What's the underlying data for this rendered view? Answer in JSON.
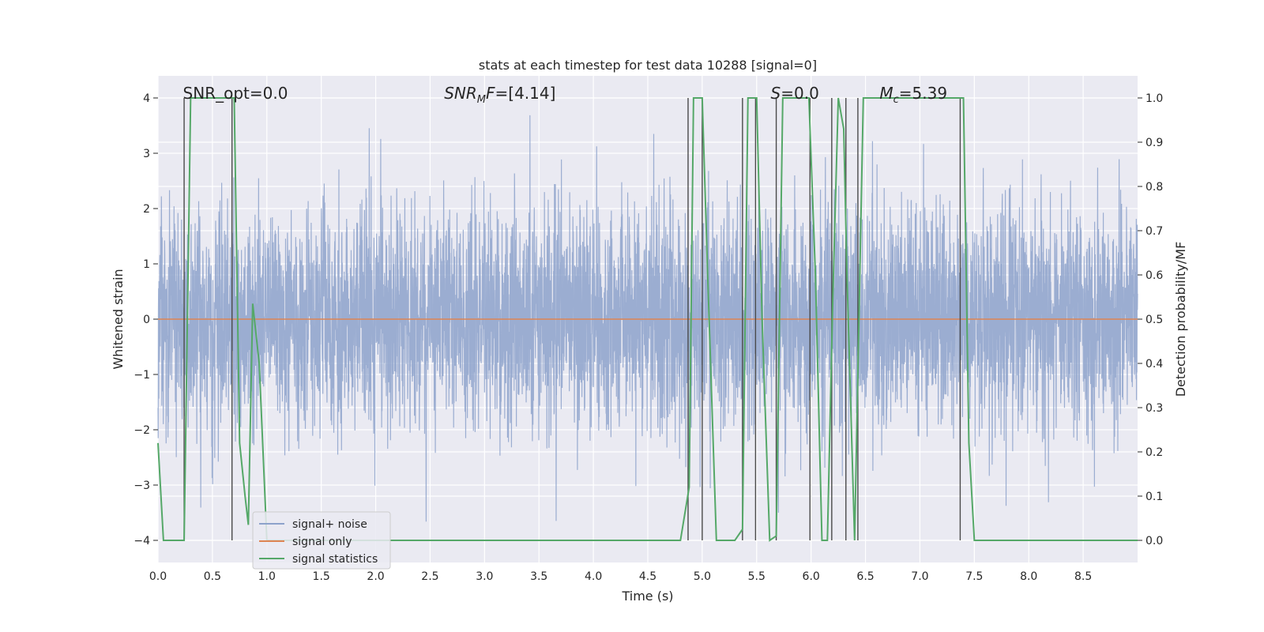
{
  "chart_data": {
    "type": "line",
    "title": "stats at each timestep for test data 10288 [signal=0]",
    "xlabel": "Time (s)",
    "ylabel": "Whitened strain",
    "y2label": "Detection probability/MF",
    "xlim": [
      0.0,
      9.0
    ],
    "ylim": [
      -4.4,
      4.4
    ],
    "y2lim": [
      -0.05,
      1.05
    ],
    "xticks": [
      0.0,
      0.5,
      1.0,
      1.5,
      2.0,
      2.5,
      3.0,
      3.5,
      4.0,
      4.5,
      5.0,
      5.5,
      6.0,
      6.5,
      7.0,
      7.5,
      8.0,
      8.5
    ],
    "xtick_labels": [
      "0.0",
      "0.5",
      "1.0",
      "1.5",
      "2.0",
      "2.5",
      "3.0",
      "3.5",
      "4.0",
      "4.5",
      "5.0",
      "5.5",
      "6.0",
      "6.5",
      "7.0",
      "7.5",
      "8.0",
      "8.5"
    ],
    "yticks": [
      -4,
      -3,
      -2,
      -1,
      0,
      1,
      2,
      3,
      4
    ],
    "ytick_labels": [
      "−4",
      "−3",
      "−2",
      "−1",
      "0",
      "1",
      "2",
      "3",
      "4"
    ],
    "y2ticks": [
      0.0,
      0.1,
      0.2,
      0.3,
      0.4,
      0.5,
      0.6,
      0.7,
      0.8,
      0.9,
      1.0
    ],
    "y2tick_labels": [
      "0.0",
      "0.1",
      "0.2",
      "0.3",
      "0.4",
      "0.5",
      "0.6",
      "0.7",
      "0.8",
      "0.9",
      "1.0"
    ],
    "legend": {
      "placement": "lower-left",
      "entries": [
        "signal+ noise",
        "signal only",
        "signal statistics"
      ]
    },
    "annotations": [
      {
        "text": "SNR_opt=0.0",
        "x": 0.2,
        "y": 4.0
      },
      {
        "base": "SNR",
        "sub": "M",
        "tail": "F=[4.14]",
        "x": 2.6,
        "y": 4.0
      },
      {
        "base": "S",
        "sub": "",
        "tail": "=0.0",
        "x": 5.6,
        "y": 4.0
      },
      {
        "base": "M",
        "sub": "c",
        "tail": "=5.39",
        "x": 6.6,
        "y": 4.0
      }
    ],
    "series": [
      {
        "name": "signal+ noise",
        "axis": "left",
        "color": "#8da2cb",
        "description": "whitened strain noise, roughly Gaussian, std about 1.0, range about -4 to 4",
        "noise_std": 1.0
      },
      {
        "name": "signal only",
        "axis": "left",
        "color": "#dd8452",
        "x": [
          0.0,
          9.0
        ],
        "y": [
          0.0,
          0.0
        ]
      },
      {
        "name": "signal statistics",
        "axis": "right",
        "color": "#55a868",
        "x": [
          0.0,
          0.05,
          0.15,
          0.24,
          0.3,
          0.5,
          0.65,
          0.7,
          0.75,
          0.8,
          0.83,
          0.87,
          0.93,
          1.0,
          1.05,
          4.8,
          4.88,
          4.92,
          5.0,
          5.05,
          5.13,
          5.3,
          5.37,
          5.42,
          5.5,
          5.55,
          5.62,
          5.68,
          5.74,
          5.98,
          6.04,
          6.1,
          6.15,
          6.2,
          6.25,
          6.3,
          6.33,
          6.4,
          6.48,
          7.33,
          7.4,
          7.45,
          7.5,
          9.0
        ],
        "y": [
          0.22,
          0.0,
          0.0,
          0.0,
          1.0,
          1.0,
          1.0,
          1.0,
          0.22,
          0.1,
          0.035,
          0.535,
          0.4,
          0.0,
          0.0,
          0.0,
          0.12,
          1.0,
          1.0,
          0.6,
          0.0,
          0.0,
          0.025,
          1.0,
          1.0,
          0.5,
          0.0,
          0.01,
          1.0,
          1.0,
          0.6,
          0.0,
          0.0,
          0.55,
          1.0,
          0.93,
          0.6,
          0.0,
          1.0,
          1.0,
          1.0,
          0.22,
          0.0,
          0.0
        ]
      }
    ],
    "vertical_lines": [
      0.24,
      0.68,
      4.87,
      5.0,
      5.37,
      5.49,
      5.68,
      5.99,
      6.19,
      6.32,
      6.43,
      7.37
    ],
    "grid": true
  }
}
